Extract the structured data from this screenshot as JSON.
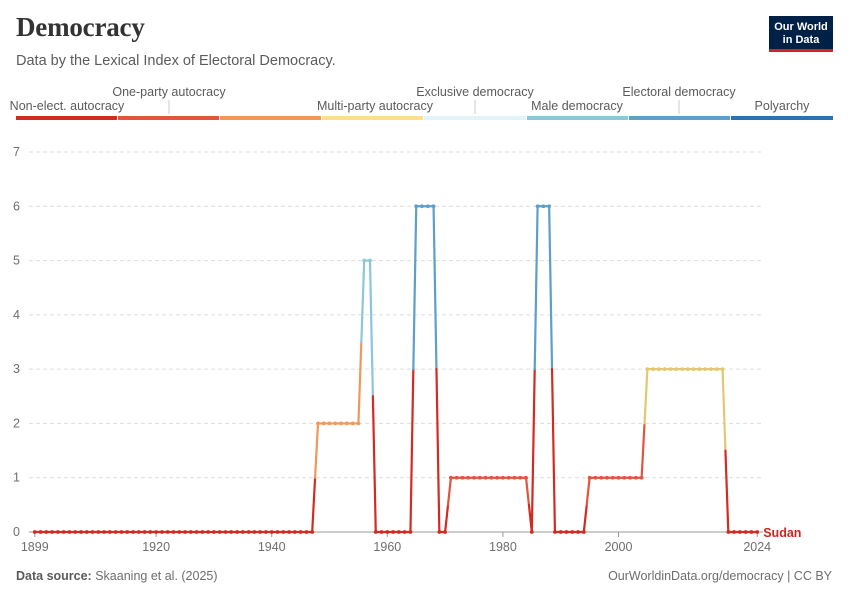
{
  "title": "Democracy",
  "subtitle": "Data by the Lexical Index of Electoral Democracy.",
  "logo": {
    "line1": "Our World",
    "line2": "in Data"
  },
  "footer": {
    "source_label": "Data source:",
    "source_value": "Skaaning et al. (2025)",
    "link": "OurWorldinData.org/democracy | CC BY"
  },
  "colors": {
    "scale": [
      "#d32a21",
      "#e3543f",
      "#f2975a",
      "#fbdf8f",
      "#e3f3fa",
      "#8ec5da",
      "#5e9ec9",
      "#2e71b0"
    ],
    "line_yellow": "#e3c872",
    "series_label": "#ce261e",
    "grid": "#dddddd",
    "axis_text": "#6e6e6e"
  },
  "legend": {
    "items": [
      "Non-elect. autocracy",
      "One-party autocracy",
      "Multi-party autocracy",
      "Exclusive democracy",
      "Male democracy",
      "Electoral democracy",
      "Polyarchy"
    ]
  },
  "chart_data": {
    "type": "line",
    "title": "Democracy",
    "subtitle": "Data by the Lexical Index of Electoral Democracy.",
    "xlabel": "",
    "ylabel": "",
    "xlim": [
      1898,
      2025
    ],
    "ylim": [
      0,
      7
    ],
    "x_ticks": [
      "1899",
      "1920",
      "1940",
      "1960",
      "1980",
      "2000",
      "2024"
    ],
    "y_ticks": [
      "0",
      "1",
      "2",
      "3",
      "4",
      "5",
      "6",
      "7"
    ],
    "grid": true,
    "legend": "top color scale",
    "series": [
      {
        "name": "Sudan",
        "x": [
          1899,
          1900,
          1901,
          1902,
          1903,
          1904,
          1905,
          1906,
          1907,
          1908,
          1909,
          1910,
          1911,
          1912,
          1913,
          1914,
          1915,
          1916,
          1917,
          1918,
          1919,
          1920,
          1921,
          1922,
          1923,
          1924,
          1925,
          1926,
          1927,
          1928,
          1929,
          1930,
          1931,
          1932,
          1933,
          1934,
          1935,
          1936,
          1937,
          1938,
          1939,
          1940,
          1941,
          1942,
          1943,
          1944,
          1945,
          1946,
          1947,
          1948,
          1949,
          1950,
          1951,
          1952,
          1953,
          1954,
          1955,
          1956,
          1957,
          1958,
          1959,
          1960,
          1961,
          1962,
          1963,
          1964,
          1965,
          1966,
          1967,
          1968,
          1969,
          1970,
          1971,
          1972,
          1973,
          1974,
          1975,
          1976,
          1977,
          1978,
          1979,
          1980,
          1981,
          1982,
          1983,
          1984,
          1985,
          1986,
          1987,
          1988,
          1989,
          1990,
          1991,
          1992,
          1993,
          1994,
          1995,
          1996,
          1997,
          1998,
          1999,
          2000,
          2001,
          2002,
          2003,
          2004,
          2005,
          2006,
          2007,
          2008,
          2009,
          2010,
          2011,
          2012,
          2013,
          2014,
          2015,
          2016,
          2017,
          2018,
          2019,
          2020,
          2021,
          2022,
          2023,
          2024
        ],
        "y": [
          0,
          0,
          0,
          0,
          0,
          0,
          0,
          0,
          0,
          0,
          0,
          0,
          0,
          0,
          0,
          0,
          0,
          0,
          0,
          0,
          0,
          0,
          0,
          0,
          0,
          0,
          0,
          0,
          0,
          0,
          0,
          0,
          0,
          0,
          0,
          0,
          0,
          0,
          0,
          0,
          0,
          0,
          0,
          0,
          0,
          0,
          0,
          0,
          0,
          2,
          2,
          2,
          2,
          2,
          2,
          2,
          2,
          5,
          5,
          0,
          0,
          0,
          0,
          0,
          0,
          0,
          6,
          6,
          6,
          6,
          0,
          0,
          1,
          1,
          1,
          1,
          1,
          1,
          1,
          1,
          1,
          1,
          1,
          1,
          1,
          1,
          0,
          6,
          6,
          6,
          0,
          0,
          0,
          0,
          0,
          0,
          1,
          1,
          1,
          1,
          1,
          1,
          1,
          1,
          1,
          1,
          3,
          3,
          3,
          3,
          3,
          3,
          3,
          3,
          3,
          3,
          3,
          3,
          3,
          3,
          0,
          0,
          0,
          0,
          0,
          0
        ]
      }
    ]
  }
}
